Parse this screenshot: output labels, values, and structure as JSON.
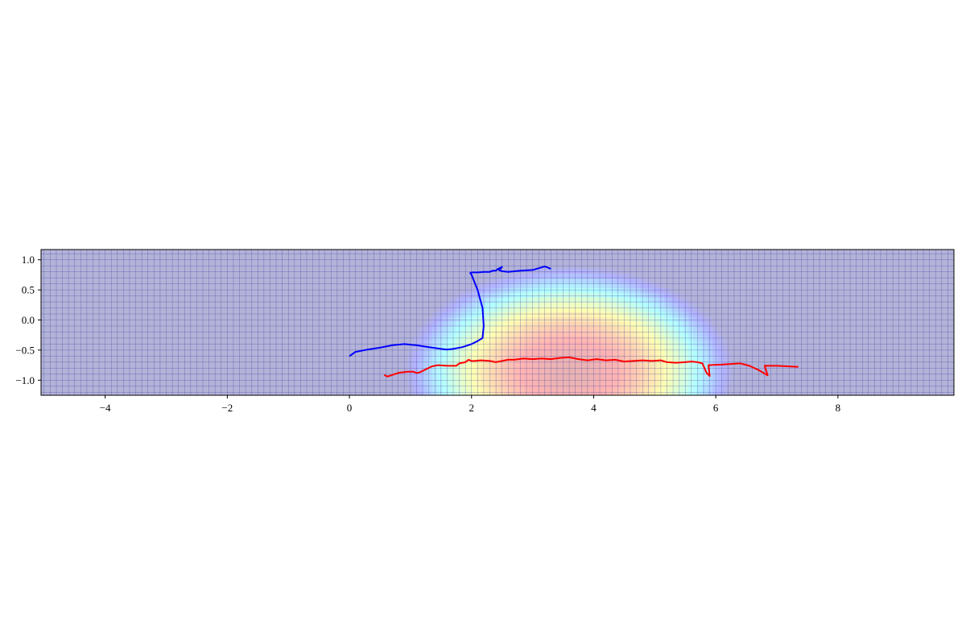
{
  "chart_data": {
    "type": "line",
    "title": "",
    "xlabel": "",
    "ylabel": "",
    "xlim": [
      -5.05,
      9.9
    ],
    "ylim": [
      -1.25,
      1.17
    ],
    "x_ticks": [
      -4,
      -2,
      0,
      2,
      4,
      6,
      8
    ],
    "x_tick_labels": [
      "−4",
      "−2",
      "0",
      "2",
      "4",
      "6",
      "8"
    ],
    "y_ticks": [
      1.0,
      0.5,
      0.0,
      -0.5,
      -1.0
    ],
    "y_tick_labels": [
      "1.0",
      "0.5",
      "0.0",
      "−0.5",
      "−1.0"
    ],
    "grid": true,
    "grid_color": "#3a3a9a",
    "background_color": "#b9b9e0",
    "heatmap": {
      "description_free": true,
      "center": [
        3.6,
        -0.85
      ],
      "spread_x": 2.0,
      "spread_y": 1.3,
      "extent_x": [
        -0.6,
        7.3
      ],
      "colormap": "jet",
      "alpha": 0.3
    },
    "series": [
      {
        "color": "#0000ff",
        "x": [
          0.0,
          0.1,
          0.3,
          0.5,
          0.7,
          0.9,
          1.1,
          1.3,
          1.5,
          1.6,
          1.7,
          1.85,
          2.0,
          2.1,
          2.18,
          2.2,
          2.18,
          2.1,
          2.0,
          1.98,
          2.0,
          2.1,
          2.2,
          2.3,
          2.35,
          2.4,
          2.42,
          2.46,
          2.5,
          2.45,
          2.5,
          2.6,
          2.8,
          3.0,
          3.1,
          3.2,
          3.3
        ],
        "y": [
          -0.6,
          -0.53,
          -0.49,
          -0.46,
          -0.42,
          -0.4,
          -0.42,
          -0.45,
          -0.48,
          -0.49,
          -0.48,
          -0.45,
          -0.4,
          -0.35,
          -0.3,
          -0.1,
          0.2,
          0.5,
          0.75,
          0.78,
          0.79,
          0.79,
          0.8,
          0.8,
          0.82,
          0.82,
          0.84,
          0.86,
          0.88,
          0.83,
          0.81,
          0.8,
          0.82,
          0.83,
          0.86,
          0.89,
          0.85
        ]
      },
      {
        "color": "#ff0000",
        "x": [
          0.57,
          0.62,
          0.8,
          0.95,
          1.05,
          1.1,
          1.15,
          1.25,
          1.35,
          1.45,
          1.6,
          1.75,
          1.8,
          1.9,
          1.95,
          2.0,
          2.05,
          2.15,
          2.3,
          2.4,
          2.5,
          2.6,
          2.7,
          2.85,
          3.0,
          3.15,
          3.3,
          3.45,
          3.6,
          3.75,
          3.9,
          4.05,
          4.2,
          4.35,
          4.5,
          4.65,
          4.8,
          4.95,
          5.1,
          5.2,
          5.35,
          5.5,
          5.6,
          5.7,
          5.78,
          5.85,
          5.9,
          5.88,
          6.1,
          6.4,
          6.55,
          6.7,
          6.85,
          6.8,
          7.0,
          7.2,
          7.35
        ],
        "y": [
          -0.91,
          -0.94,
          -0.88,
          -0.86,
          -0.86,
          -0.88,
          -0.87,
          -0.82,
          -0.77,
          -0.75,
          -0.76,
          -0.76,
          -0.72,
          -0.7,
          -0.66,
          -0.68,
          -0.68,
          -0.67,
          -0.68,
          -0.7,
          -0.68,
          -0.66,
          -0.66,
          -0.64,
          -0.65,
          -0.64,
          -0.65,
          -0.63,
          -0.62,
          -0.65,
          -0.67,
          -0.65,
          -0.67,
          -0.66,
          -0.69,
          -0.68,
          -0.67,
          -0.68,
          -0.67,
          -0.7,
          -0.71,
          -0.7,
          -0.69,
          -0.7,
          -0.72,
          -0.88,
          -0.93,
          -0.75,
          -0.74,
          -0.72,
          -0.76,
          -0.83,
          -0.92,
          -0.76,
          -0.76,
          -0.77,
          -0.78
        ]
      }
    ]
  }
}
